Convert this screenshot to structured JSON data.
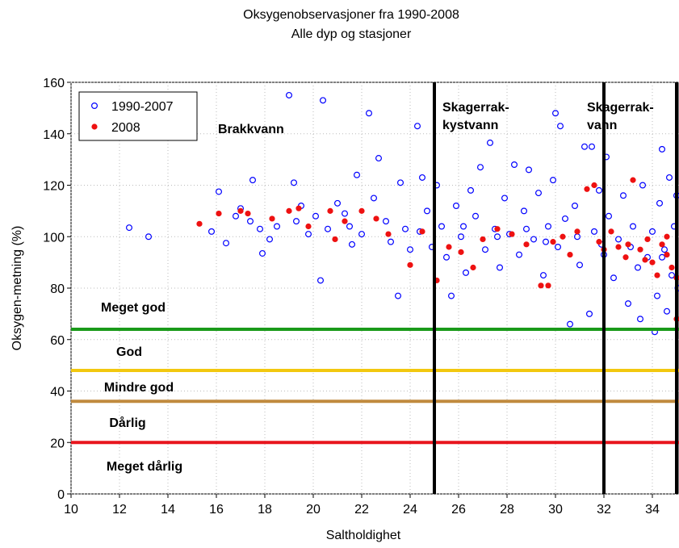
{
  "chart_data": {
    "type": "scatter",
    "title": "Oksygenobservasjoner fra 1990-2008",
    "subtitle": "Alle dyp og stasjoner",
    "x_label": "Saltholdighet",
    "y_label": "Oksygen-metning (%)",
    "xlim": [
      10,
      35.1
    ],
    "ylim": [
      0,
      160
    ],
    "xticks": [
      10,
      12,
      14,
      16,
      18,
      20,
      22,
      24,
      26,
      28,
      30,
      32,
      34
    ],
    "yticks": [
      0,
      20,
      40,
      60,
      80,
      100,
      120,
      140,
      160
    ],
    "grid": true,
    "legend": "upper left",
    "thresholds": [
      {
        "value": 64,
        "color": "#1a9a1a"
      },
      {
        "value": 48,
        "color": "#f2c80f"
      },
      {
        "value": 36,
        "color": "#c08a3e"
      },
      {
        "value": 20,
        "color": "#e8161e"
      }
    ],
    "vlines": [
      25,
      32,
      35
    ],
    "zones": [
      {
        "lines": [
          "Brakkvann"
        ]
      },
      {
        "lines": [
          "Skagerrak-",
          "kystvann"
        ]
      },
      {
        "lines": [
          "Skagerrak-",
          "vann"
        ]
      }
    ],
    "classes": [
      "Meget god",
      "God",
      "Mindre god",
      "Dårlig",
      "Meget dårlig"
    ],
    "series": [
      {
        "name": "1990-2007",
        "color": "#0000ff",
        "filled": false,
        "x": [
          12.4,
          13.2,
          16.1,
          15.8,
          16.4,
          16.8,
          17,
          17.5,
          17.4,
          17.8,
          17.9,
          18.2,
          18.5,
          19,
          19.2,
          19.5,
          19.8,
          20.1,
          20.3,
          20.4,
          20.6,
          21,
          21.3,
          21.6,
          21.8,
          22,
          22.3,
          22.5,
          22.7,
          23,
          23.2,
          23.5,
          23.6,
          23.8,
          24,
          24.3,
          24.5,
          24.7,
          24.9,
          25.1,
          25.3,
          25.5,
          25.7,
          25.9,
          26.1,
          26.3,
          26.5,
          26.7,
          26.9,
          27.1,
          27.3,
          27.5,
          27.7,
          27.9,
          28.1,
          28.3,
          28.5,
          28.7,
          28.9,
          29.1,
          29.3,
          29.5,
          29.7,
          29.9,
          30,
          30.1,
          30.2,
          30.4,
          30.6,
          30.8,
          31,
          31.2,
          31.4,
          31.5,
          31.6,
          31.8,
          32,
          32.1,
          32.2,
          32.4,
          32.6,
          32.8,
          33,
          33.2,
          33.4,
          33.5,
          33.6,
          33.8,
          34,
          34.1,
          34.2,
          34.3,
          34.4,
          34.5,
          34.6,
          34.7,
          34.8,
          34.9,
          35,
          35.05,
          26.2,
          27.6,
          28.8,
          29.6,
          30.9,
          31.9,
          33.1,
          34.4,
          24.4,
          21.5,
          19.3
        ],
        "values": [
          103.5,
          100,
          117.5,
          102,
          97.5,
          108,
          111,
          122,
          106,
          103,
          93.5,
          99,
          104,
          155,
          121,
          112,
          101,
          108,
          83,
          153,
          103,
          113,
          109,
          97,
          124,
          101,
          148,
          115,
          130.5,
          106,
          98,
          77,
          121,
          103,
          95,
          143,
          123,
          110,
          96,
          120,
          104,
          92,
          77,
          112,
          100,
          86,
          118,
          108,
          127,
          95,
          136.5,
          103,
          88,
          115,
          101,
          128,
          93,
          110,
          126,
          99,
          117,
          85,
          104,
          122,
          148,
          96,
          143,
          107,
          66,
          112,
          89,
          135,
          70,
          135,
          102,
          118,
          93,
          131,
          108,
          84,
          99,
          116,
          74,
          104,
          88,
          68,
          120,
          92,
          102,
          63,
          77,
          113,
          134,
          95,
          71,
          123,
          85,
          104,
          116,
          80,
          104,
          100,
          103,
          98,
          100,
          97,
          96,
          92,
          102,
          104,
          106
        ]
      },
      {
        "name": "2008",
        "color": "#ee1111",
        "filled": true,
        "x": [
          15.3,
          16.1,
          17,
          17.3,
          18.3,
          19,
          19.4,
          19.8,
          20.7,
          20.9,
          21.3,
          22,
          22.6,
          23.1,
          24,
          24.5,
          25.1,
          25.6,
          26.1,
          26.6,
          27,
          27.6,
          28.2,
          28.8,
          29.4,
          29.7,
          29.9,
          30.3,
          30.6,
          30.9,
          31.3,
          31.6,
          31.8,
          32.3,
          32.6,
          32.9,
          33.2,
          33.5,
          33.8,
          34,
          34.2,
          34.4,
          34.6,
          34.8,
          35,
          35,
          33,
          32,
          34.6,
          33.7
        ],
        "values": [
          105,
          109,
          110,
          109,
          107,
          110,
          111,
          104,
          110,
          99,
          106,
          110,
          107,
          101,
          89,
          102,
          83,
          96,
          94,
          88,
          99,
          103,
          101,
          97,
          81,
          81,
          98,
          100,
          93,
          102,
          118.5,
          120,
          98,
          102,
          96,
          92,
          122,
          95,
          99,
          90,
          85,
          97,
          93,
          88,
          68,
          84,
          97,
          95,
          100,
          91
        ]
      }
    ]
  }
}
